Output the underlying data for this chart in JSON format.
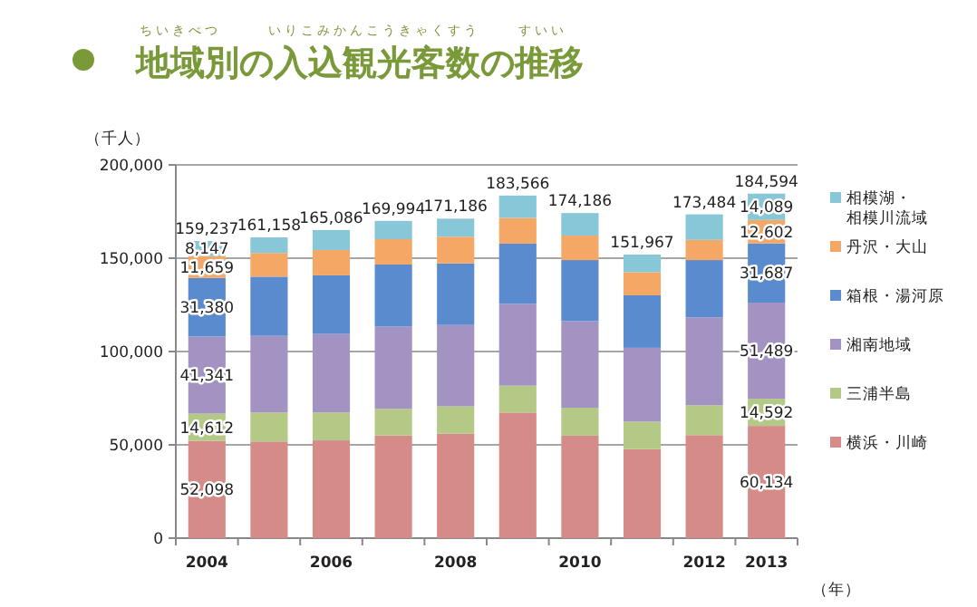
{
  "chart_data": {
    "type": "bar",
    "stacked": true,
    "title": "地域別の入込観光客数の推移",
    "annotations": [
      "ちいきべつ",
      "いりこみかんこうきゃくすう",
      "すいい"
    ],
    "ylabel": "（千人）",
    "xlabel": "（年）",
    "categories": [
      "2004",
      null,
      "2006",
      null,
      "2008",
      null,
      "2010",
      null,
      "2012",
      "2013"
    ],
    "series": [
      {
        "name": "横浜・川崎",
        "color": "#d58c88",
        "values": [
          52098,
          51800,
          52400,
          55000,
          56000,
          67300,
          54900,
          47700,
          55200,
          60134
        ],
        "value_labels": [
          "52,098",
          null,
          null,
          null,
          null,
          null,
          null,
          null,
          null,
          "60,134"
        ]
      },
      {
        "name": "三浦半島",
        "color": "#b3c985",
        "values": [
          14612,
          15500,
          14900,
          14300,
          14600,
          14400,
          15000,
          14700,
          16000,
          14592
        ],
        "value_labels": [
          "14,612",
          null,
          null,
          null,
          null,
          null,
          null,
          null,
          null,
          "14,592"
        ]
      },
      {
        "name": "湘南地域",
        "color": "#a393c2",
        "values": [
          41341,
          41100,
          42100,
          44000,
          43600,
          43800,
          46400,
          39600,
          47100,
          51489
        ],
        "value_labels": [
          "41,341",
          null,
          null,
          null,
          null,
          null,
          null,
          null,
          null,
          "51,489"
        ]
      },
      {
        "name": "箱根・湯河原",
        "color": "#5b8bcf",
        "values": [
          31380,
          31700,
          31400,
          33300,
          33000,
          32300,
          32700,
          28100,
          30700,
          31687
        ],
        "value_labels": [
          "31,380",
          null,
          null,
          null,
          null,
          null,
          null,
          null,
          null,
          "31,687"
        ]
      },
      {
        "name": "丹沢・大山",
        "color": "#f5a866",
        "values": [
          11659,
          12700,
          13600,
          13600,
          14300,
          13800,
          13100,
          12400,
          10800,
          12602
        ],
        "value_labels": [
          "11,659",
          null,
          null,
          null,
          null,
          null,
          null,
          null,
          null,
          "12,602"
        ]
      },
      {
        "name": "相模湖・相模川流域",
        "color": "#87c7d7",
        "values": [
          8147,
          8358,
          10686,
          9794,
          9686,
          11966,
          12086,
          9467,
          13684,
          14089
        ],
        "value_labels": [
          "8,147",
          null,
          null,
          null,
          null,
          null,
          null,
          null,
          null,
          "14,089"
        ]
      }
    ],
    "totals": [
      "159,237",
      "161,158",
      "165,086",
      "169,994",
      "171,186",
      "183,566",
      "174,186",
      "151,967",
      "173,484",
      "184,594"
    ],
    "ylim": [
      0,
      200000
    ],
    "yticks": [
      {
        "value": 0,
        "label": "0"
      },
      {
        "value": 50000,
        "label": "50,000"
      },
      {
        "value": 100000,
        "label": "100,000"
      },
      {
        "value": 150000,
        "label": "150,000"
      },
      {
        "value": 200000,
        "label": "200,000"
      }
    ],
    "grid": "y",
    "legend": "right"
  }
}
